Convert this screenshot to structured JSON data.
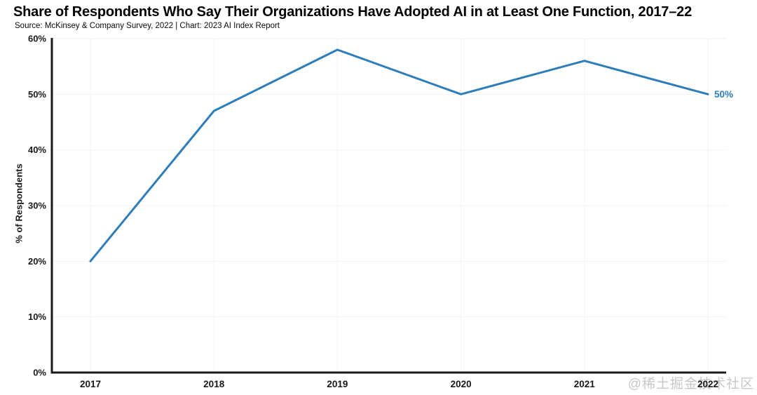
{
  "header": {
    "title": "Share of Respondents Who Say Their Organizations Have Adopted AI in at Least One Function, 2017–22",
    "source_line": "Source: McKinsey & Company Survey, 2022 | Chart: 2023 AI Index Report"
  },
  "chart_data": {
    "type": "line",
    "title": "Share of Respondents Who Say Their Organizations Have Adopted AI in at Least One Function, 2017–22",
    "categories": [
      "2017",
      "2018",
      "2019",
      "2020",
      "2021",
      "2022"
    ],
    "series": [
      {
        "name": "Share of respondents who say their organizations have adopted AI",
        "values": [
          20,
          47,
          58,
          50,
          56,
          50
        ]
      }
    ],
    "xlabel": "",
    "ylabel": "% of Respondents",
    "ylim": [
      0,
      60
    ],
    "ytick_step": 10,
    "ytick_labels": [
      "0%",
      "10%",
      "20%",
      "30%",
      "40%",
      "50%",
      "60%"
    ],
    "end_label": "50%",
    "grid": "on",
    "legend": "none",
    "colors": {
      "line": "#2d7dbb",
      "end_label": "#2e7ebd",
      "axis": "#1a1a1a",
      "grid": "#f2f2f2",
      "tick_text": "#191919"
    }
  },
  "watermark": {
    "text": "@稀土掘金技术社区",
    "color": "#c7c7c7"
  }
}
